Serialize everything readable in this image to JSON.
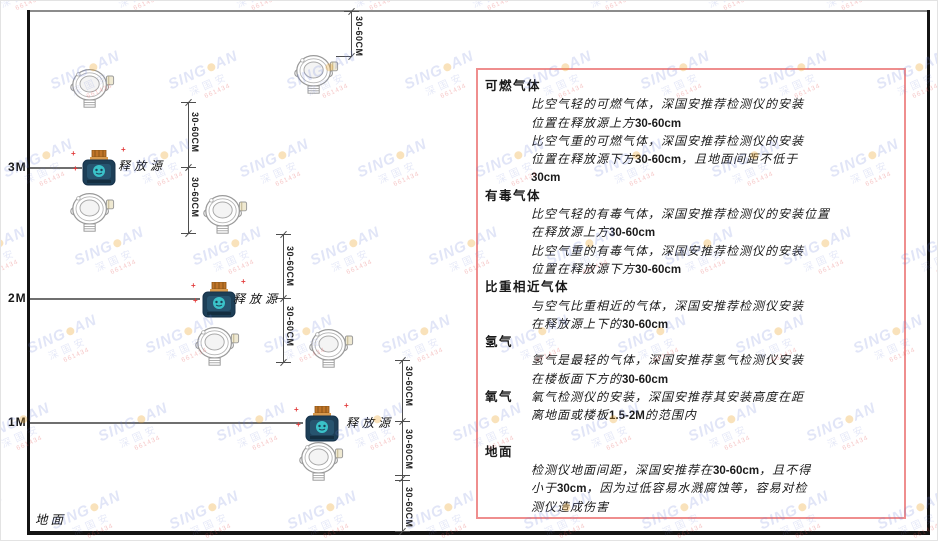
{
  "watermark": {
    "brand_left": "SING",
    "brand_right": "AN",
    "company": "深国安",
    "code": "661434"
  },
  "diagram": {
    "ground_label": "地面",
    "source_label": "释放源",
    "dim_label": "30-60CM",
    "heights": [
      {
        "label": "3M"
      },
      {
        "label": "2M"
      },
      {
        "label": "1M"
      }
    ]
  },
  "panel": {
    "border_color": "#ef8e8e",
    "sections": [
      {
        "heading": "可燃气体",
        "paras": [
          [
            [
              {
                "t": "比空气轻的可燃气体，深国安推荐检测仪的安装"
              }
            ],
            [
              {
                "t": "位置在释放源上方"
              },
              {
                "t": "30-60cm",
                "b": true
              }
            ]
          ],
          [
            [
              {
                "t": "比空气重的可燃气体，深国安推荐检测仪的安装"
              }
            ],
            [
              {
                "t": "位置在释放源下方"
              },
              {
                "t": "30-60cm",
                "b": true
              },
              {
                "t": "，且地面间距不低于"
              }
            ],
            [
              {
                "t": "30cm",
                "b": true
              }
            ]
          ]
        ]
      },
      {
        "heading": "有毒气体",
        "paras": [
          [
            [
              {
                "t": "比空气轻的有毒气体，深国安推荐检测仪的安装位置"
              }
            ],
            [
              {
                "t": "在释放源上方"
              },
              {
                "t": "30-60cm",
                "b": true
              }
            ]
          ],
          [
            [
              {
                "t": "比空气重的有毒气体，深国安推荐检测仪的安装"
              }
            ],
            [
              {
                "t": "位置在释放源下方"
              },
              {
                "t": "30-60cm",
                "b": true
              }
            ]
          ]
        ]
      },
      {
        "heading": "比重相近气体",
        "paras": [
          [
            [
              {
                "t": "与空气比重相近的气体，深国安推荐检测仪安装"
              }
            ],
            [
              {
                "t": "在释放源上下的"
              },
              {
                "t": "30-60cm",
                "b": true
              }
            ]
          ]
        ]
      },
      {
        "heading": "氢气",
        "paras": [
          [
            [
              {
                "t": "氢气是最轻的气体，深国安推荐氢气检测仪安装"
              }
            ],
            [
              {
                "t": "在楼板面下方的"
              },
              {
                "t": "30-60cm",
                "b": true
              }
            ]
          ]
        ]
      },
      {
        "heading": "氧气",
        "inline": true,
        "paras": [
          [
            [
              {
                "t": "氧气检测仪的安装，深国安推荐其安装高度在距"
              }
            ],
            [
              {
                "t": "离地面或楼板"
              },
              {
                "t": "1.5-2M",
                "b": true
              },
              {
                "t": "的范围内"
              }
            ]
          ]
        ]
      },
      {
        "heading": "地面",
        "gap_before": true,
        "paras": [
          [
            [
              {
                "t": "检测仪地面间距，深国安推荐在"
              },
              {
                "t": "30-60cm",
                "b": true
              },
              {
                "t": "，且不得"
              }
            ],
            [
              {
                "t": "小于"
              },
              {
                "t": "30cm",
                "b": true
              },
              {
                "t": "，因为过低容易水溅腐蚀等，容易对检"
              }
            ],
            [
              {
                "t": "测仪造成伤害"
              }
            ]
          ]
        ]
      }
    ]
  }
}
